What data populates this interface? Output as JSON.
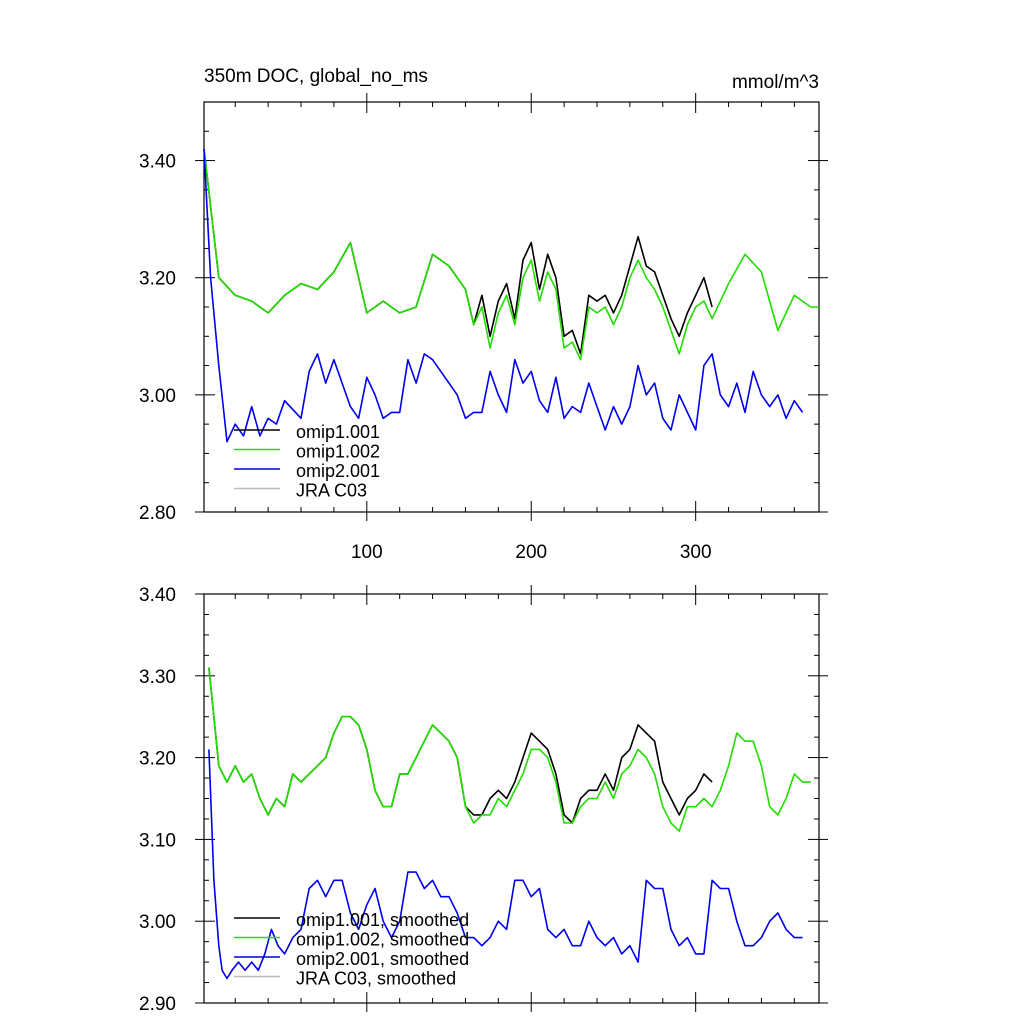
{
  "chart_data": [
    {
      "type": "line",
      "title": "350m DOC, global_no_ms",
      "units": "mmol/m^3",
      "xlim": [
        1,
        375
      ],
      "ylim": [
        2.8,
        3.5
      ],
      "x_ticks": [
        100,
        200,
        300
      ],
      "y_ticks": [
        2.8,
        3.0,
        3.2,
        3.4
      ],
      "y_tick_labels": [
        "2.80",
        "3.00",
        "3.20",
        "3.40"
      ],
      "legend_position": "bottom-left",
      "series": [
        {
          "name": "omip1.001",
          "color": "#000000",
          "x": [
            1,
            10,
            20,
            30,
            40,
            50,
            60,
            70,
            80,
            90,
            100,
            110,
            120,
            130,
            140,
            150,
            160,
            165,
            170,
            175,
            180,
            185,
            190,
            195,
            200,
            205,
            210,
            215,
            220,
            225,
            230,
            235,
            240,
            245,
            250,
            255,
            260,
            265,
            270,
            275,
            280,
            285,
            290,
            295,
            300,
            305,
            310
          ],
          "y": [
            3.42,
            3.2,
            3.17,
            3.16,
            3.14,
            3.17,
            3.19,
            3.18,
            3.21,
            3.26,
            3.14,
            3.16,
            3.14,
            3.15,
            3.24,
            3.22,
            3.18,
            3.12,
            3.17,
            3.1,
            3.16,
            3.19,
            3.13,
            3.23,
            3.26,
            3.18,
            3.24,
            3.2,
            3.1,
            3.11,
            3.07,
            3.17,
            3.16,
            3.17,
            3.14,
            3.17,
            3.22,
            3.27,
            3.22,
            3.21,
            3.17,
            3.13,
            3.1,
            3.14,
            3.17,
            3.2,
            3.15
          ]
        },
        {
          "name": "omip1.002",
          "color": "#22dd00",
          "x": [
            1,
            10,
            20,
            30,
            40,
            50,
            60,
            70,
            80,
            90,
            100,
            110,
            120,
            130,
            140,
            150,
            160,
            165,
            170,
            175,
            180,
            185,
            190,
            195,
            200,
            205,
            210,
            215,
            220,
            225,
            230,
            235,
            240,
            245,
            250,
            255,
            260,
            265,
            270,
            275,
            280,
            285,
            290,
            295,
            300,
            305,
            310,
            320,
            330,
            340,
            350,
            360,
            370,
            375
          ],
          "y": [
            3.42,
            3.2,
            3.17,
            3.16,
            3.14,
            3.17,
            3.19,
            3.18,
            3.21,
            3.26,
            3.14,
            3.16,
            3.14,
            3.15,
            3.24,
            3.22,
            3.18,
            3.12,
            3.15,
            3.08,
            3.14,
            3.17,
            3.12,
            3.2,
            3.23,
            3.16,
            3.21,
            3.18,
            3.08,
            3.09,
            3.06,
            3.15,
            3.14,
            3.15,
            3.12,
            3.15,
            3.2,
            3.23,
            3.2,
            3.18,
            3.15,
            3.11,
            3.07,
            3.12,
            3.15,
            3.16,
            3.13,
            3.19,
            3.24,
            3.21,
            3.11,
            3.17,
            3.15,
            3.15
          ]
        },
        {
          "name": "omip2.001",
          "color": "#0000ee",
          "x": [
            1,
            5,
            10,
            15,
            20,
            25,
            30,
            35,
            40,
            45,
            50,
            60,
            65,
            70,
            75,
            80,
            85,
            90,
            95,
            100,
            105,
            110,
            115,
            120,
            125,
            130,
            135,
            140,
            145,
            150,
            155,
            160,
            165,
            170,
            175,
            180,
            185,
            190,
            195,
            200,
            205,
            210,
            215,
            220,
            225,
            230,
            235,
            240,
            245,
            250,
            255,
            260,
            265,
            270,
            275,
            280,
            285,
            290,
            295,
            300,
            305,
            310,
            315,
            320,
            325,
            330,
            335,
            340,
            345,
            350,
            355,
            360,
            365
          ],
          "y": [
            3.42,
            3.2,
            3.05,
            2.92,
            2.95,
            2.93,
            2.98,
            2.93,
            2.96,
            2.95,
            2.99,
            2.96,
            3.04,
            3.07,
            3.02,
            3.06,
            3.02,
            2.98,
            2.96,
            3.03,
            3.0,
            2.96,
            2.97,
            2.97,
            3.06,
            3.02,
            3.07,
            3.06,
            3.04,
            3.02,
            3.0,
            2.96,
            2.97,
            2.97,
            3.04,
            3.0,
            2.97,
            3.06,
            3.02,
            3.04,
            2.99,
            2.97,
            3.03,
            2.96,
            2.98,
            2.97,
            3.02,
            2.98,
            2.94,
            2.98,
            2.95,
            2.98,
            3.05,
            3.0,
            3.02,
            2.96,
            2.94,
            3.0,
            2.97,
            2.94,
            3.05,
            3.07,
            3.0,
            2.98,
            3.02,
            2.97,
            3.04,
            3.0,
            2.98,
            3.0,
            2.96,
            2.99,
            2.97
          ]
        },
        {
          "name": "JRA C03",
          "color": "#bbbbbb",
          "x": [],
          "y": []
        }
      ]
    },
    {
      "type": "line",
      "title": "",
      "xlim": [
        1,
        375
      ],
      "ylim": [
        2.9,
        3.4
      ],
      "x_ticks": [
        100,
        200,
        300
      ],
      "y_ticks": [
        2.9,
        3.0,
        3.1,
        3.2,
        3.3,
        3.4
      ],
      "y_tick_labels": [
        "2.90",
        "3.00",
        "3.10",
        "3.20",
        "3.30",
        "3.40"
      ],
      "legend_position": "bottom-left",
      "series": [
        {
          "name": "omip1.001, smoothed",
          "color": "#000000",
          "x": [
            4,
            10,
            15,
            20,
            25,
            30,
            35,
            40,
            45,
            50,
            55,
            60,
            65,
            70,
            75,
            80,
            85,
            90,
            95,
            100,
            105,
            110,
            115,
            120,
            125,
            130,
            135,
            140,
            145,
            150,
            155,
            160,
            165,
            170,
            175,
            180,
            185,
            190,
            195,
            200,
            205,
            210,
            215,
            220,
            225,
            230,
            235,
            240,
            245,
            250,
            255,
            260,
            265,
            270,
            275,
            280,
            285,
            290,
            295,
            300,
            305,
            310
          ],
          "y": [
            3.31,
            3.19,
            3.17,
            3.19,
            3.17,
            3.18,
            3.15,
            3.13,
            3.15,
            3.14,
            3.18,
            3.17,
            3.18,
            3.19,
            3.2,
            3.23,
            3.25,
            3.25,
            3.24,
            3.21,
            3.16,
            3.14,
            3.14,
            3.18,
            3.18,
            3.2,
            3.22,
            3.24,
            3.23,
            3.22,
            3.2,
            3.14,
            3.13,
            3.13,
            3.15,
            3.16,
            3.15,
            3.17,
            3.2,
            3.23,
            3.22,
            3.21,
            3.18,
            3.13,
            3.12,
            3.15,
            3.16,
            3.16,
            3.18,
            3.16,
            3.2,
            3.21,
            3.24,
            3.23,
            3.22,
            3.17,
            3.15,
            3.13,
            3.15,
            3.16,
            3.18,
            3.17
          ]
        },
        {
          "name": "omip1.002, smoothed",
          "color": "#22dd00",
          "x": [
            4,
            10,
            15,
            20,
            25,
            30,
            35,
            40,
            45,
            50,
            55,
            60,
            65,
            70,
            75,
            80,
            85,
            90,
            95,
            100,
            105,
            110,
            115,
            120,
            125,
            130,
            135,
            140,
            145,
            150,
            155,
            160,
            165,
            170,
            175,
            180,
            185,
            190,
            195,
            200,
            205,
            210,
            215,
            220,
            225,
            230,
            235,
            240,
            245,
            250,
            255,
            260,
            265,
            270,
            275,
            280,
            285,
            290,
            295,
            300,
            305,
            310,
            315,
            320,
            325,
            330,
            335,
            340,
            345,
            350,
            355,
            360,
            365,
            370
          ],
          "y": [
            3.31,
            3.19,
            3.17,
            3.19,
            3.17,
            3.18,
            3.15,
            3.13,
            3.15,
            3.14,
            3.18,
            3.17,
            3.18,
            3.19,
            3.2,
            3.23,
            3.25,
            3.25,
            3.24,
            3.21,
            3.16,
            3.14,
            3.14,
            3.18,
            3.18,
            3.2,
            3.22,
            3.24,
            3.23,
            3.22,
            3.2,
            3.14,
            3.12,
            3.13,
            3.13,
            3.15,
            3.14,
            3.16,
            3.18,
            3.21,
            3.21,
            3.2,
            3.17,
            3.12,
            3.12,
            3.14,
            3.15,
            3.15,
            3.17,
            3.15,
            3.18,
            3.19,
            3.21,
            3.2,
            3.18,
            3.14,
            3.12,
            3.11,
            3.14,
            3.14,
            3.15,
            3.14,
            3.16,
            3.19,
            3.23,
            3.22,
            3.22,
            3.19,
            3.14,
            3.13,
            3.15,
            3.18,
            3.17,
            3.17
          ]
        },
        {
          "name": "omip2.001, smoothed",
          "color": "#0000ee",
          "x": [
            4,
            7,
            10,
            12,
            15,
            18,
            22,
            26,
            30,
            34,
            38,
            42,
            46,
            50,
            55,
            60,
            65,
            70,
            75,
            80,
            85,
            90,
            95,
            100,
            105,
            110,
            115,
            120,
            125,
            130,
            135,
            140,
            145,
            150,
            155,
            160,
            165,
            170,
            175,
            180,
            185,
            190,
            195,
            200,
            205,
            210,
            215,
            220,
            225,
            230,
            235,
            240,
            245,
            250,
            255,
            260,
            265,
            270,
            275,
            280,
            285,
            290,
            295,
            300,
            305,
            310,
            315,
            320,
            325,
            330,
            335,
            340,
            345,
            350,
            355,
            360,
            365
          ],
          "y": [
            3.21,
            3.05,
            2.97,
            2.94,
            2.93,
            2.94,
            2.95,
            2.94,
            2.95,
            2.94,
            2.96,
            2.99,
            2.97,
            2.96,
            2.98,
            2.99,
            3.04,
            3.05,
            3.03,
            3.05,
            3.05,
            3.01,
            2.99,
            3.02,
            3.04,
            3.0,
            2.98,
            3.0,
            3.06,
            3.06,
            3.04,
            3.05,
            3.03,
            3.03,
            3.01,
            2.98,
            2.98,
            2.97,
            2.98,
            3.0,
            2.99,
            3.05,
            3.05,
            3.03,
            3.04,
            2.99,
            2.98,
            2.99,
            2.97,
            2.97,
            3.0,
            2.98,
            2.97,
            2.98,
            2.96,
            2.97,
            2.95,
            3.05,
            3.04,
            3.04,
            2.99,
            2.97,
            2.98,
            2.96,
            2.96,
            3.05,
            3.04,
            3.04,
            3.0,
            2.97,
            2.97,
            2.98,
            3.0,
            3.01,
            2.99,
            2.98,
            2.98
          ]
        },
        {
          "name": "JRA C03, smoothed",
          "color": "#bbbbbb",
          "x": [],
          "y": []
        }
      ]
    }
  ]
}
